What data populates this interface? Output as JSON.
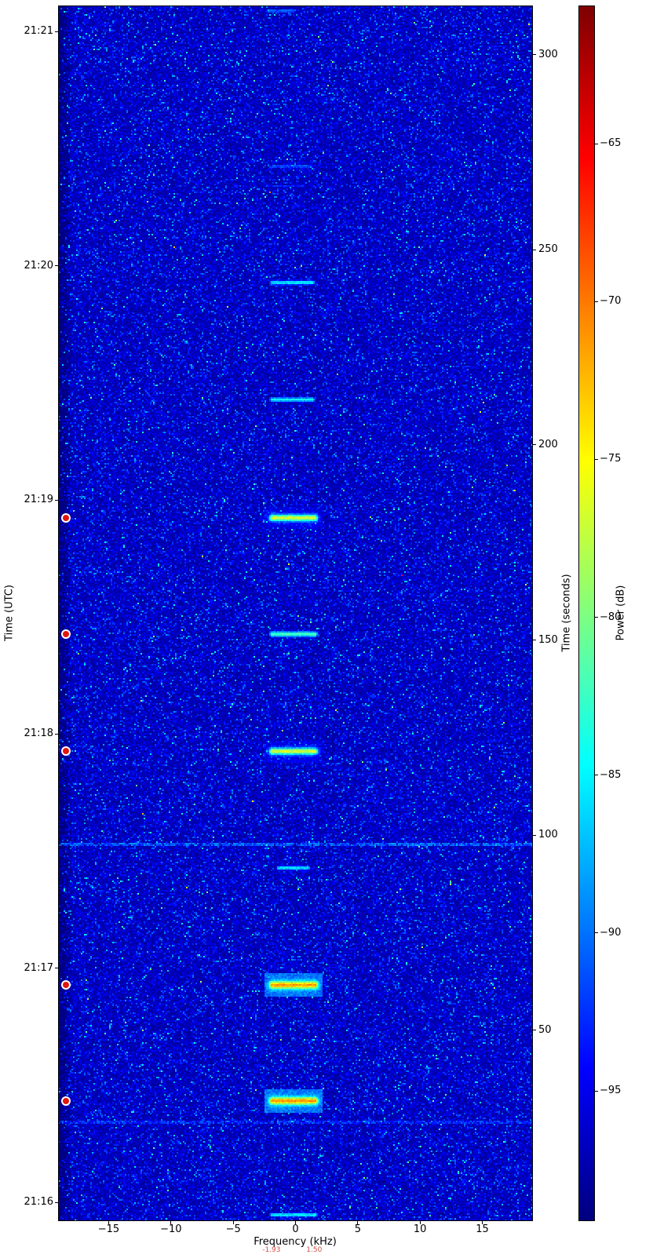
{
  "chart_data": {
    "type": "heatmap",
    "subtype": "radio_spectrogram_waterfall",
    "title": "",
    "xlabel": "Frequency (kHz)",
    "ylabel_left": "Time (UTC)",
    "ylabel_right": "Time (seconds)",
    "colorbar_label": "Power (dB)",
    "colormap": "jet",
    "xlim_khz": [
      -19.0,
      19.0
    ],
    "x_ticks": [
      {
        "value": -15,
        "label": "−15"
      },
      {
        "value": -10,
        "label": "−10"
      },
      {
        "value": -5,
        "label": "−5"
      },
      {
        "value": 0,
        "label": "0"
      },
      {
        "value": 5,
        "label": "5"
      },
      {
        "value": 10,
        "label": "10"
      },
      {
        "value": 15,
        "label": "15"
      }
    ],
    "ylim_seconds": [
      1.3,
      312.4
    ],
    "y_ticks_seconds": [
      {
        "value": 50,
        "label": "50"
      },
      {
        "value": 100,
        "label": "100"
      },
      {
        "value": 150,
        "label": "150"
      },
      {
        "value": 200,
        "label": "200"
      },
      {
        "value": 250,
        "label": "250"
      },
      {
        "value": 300,
        "label": "300"
      }
    ],
    "y_ticks_utc": [
      {
        "t_seconds": 5.9,
        "label": "21:16"
      },
      {
        "t_seconds": 65.9,
        "label": "21:17"
      },
      {
        "t_seconds": 125.9,
        "label": "21:18"
      },
      {
        "t_seconds": 185.9,
        "label": "21:19"
      },
      {
        "t_seconds": 245.9,
        "label": "21:20"
      },
      {
        "t_seconds": 305.9,
        "label": "21:21"
      }
    ],
    "power_db_range": [
      -99.1,
      -60.65
    ],
    "colorbar_ticks": [
      {
        "value": -65,
        "label": "−65"
      },
      {
        "value": -70,
        "label": "−70"
      },
      {
        "value": -75,
        "label": "−75"
      },
      {
        "value": -80,
        "label": "−80"
      },
      {
        "value": -85,
        "label": "−85"
      },
      {
        "value": -90,
        "label": "−90"
      },
      {
        "value": -95,
        "label": "−95"
      }
    ],
    "noise_floor_db": -96.5,
    "bursts": [
      {
        "t_seconds": 2.7,
        "f_lo_khz": -1.93,
        "f_hi_khz": 1.5,
        "peak_db": -84.5,
        "duration_s": 1.6
      },
      {
        "t_seconds": 31.9,
        "f_lo_khz": -1.93,
        "f_hi_khz": 1.5,
        "peak_db": -70.8,
        "duration_s": 2.4
      },
      {
        "t_seconds": 61.6,
        "f_lo_khz": -1.93,
        "f_hi_khz": 1.5,
        "peak_db": -71.0,
        "duration_s": 2.4
      },
      {
        "t_seconds": 91.6,
        "f_lo_khz": -1.4,
        "f_hi_khz": 0.9,
        "peak_db": -85.0,
        "duration_s": 1.7
      },
      {
        "t_seconds": 121.5,
        "f_lo_khz": -1.93,
        "f_hi_khz": 1.5,
        "peak_db": -76.3,
        "duration_s": 2.2
      },
      {
        "t_seconds": 151.5,
        "f_lo_khz": -1.93,
        "f_hi_khz": 1.5,
        "peak_db": -81.5,
        "duration_s": 2.0
      },
      {
        "t_seconds": 181.3,
        "f_lo_khz": -1.93,
        "f_hi_khz": 1.5,
        "peak_db": -76.5,
        "duration_s": 2.2
      },
      {
        "t_seconds": 211.6,
        "f_lo_khz": -1.93,
        "f_hi_khz": 1.3,
        "peak_db": -84.5,
        "duration_s": 1.9
      },
      {
        "t_seconds": 241.6,
        "f_lo_khz": -1.93,
        "f_hi_khz": 1.3,
        "peak_db": -85.0,
        "duration_s": 1.9
      },
      {
        "t_seconds": 266.3,
        "f_lo_khz": -1.8,
        "f_hi_khz": 0.6,
        "peak_db": -93.0,
        "duration_s": 1.5
      },
      {
        "t_seconds": 271.4,
        "f_lo_khz": -1.93,
        "f_hi_khz": 1.2,
        "peak_db": -90.5,
        "duration_s": 1.7
      },
      {
        "t_seconds": 311.2,
        "f_lo_khz": -2.3,
        "f_hi_khz": -0.3,
        "peak_db": -88.0,
        "duration_s": 1.1
      }
    ],
    "interference_lines": [
      {
        "t_seconds": 26.4,
        "peak_db": -90.5
      },
      {
        "t_seconds": 97.8,
        "peak_db": -88.5
      }
    ],
    "detections": {
      "marker": "circle",
      "fill_color": "#e1160f",
      "edge_color": "#ffffff",
      "t_seconds": [
        31.9,
        61.6,
        121.5,
        151.5,
        181.3
      ]
    },
    "annotations": [
      {
        "text": "-1.93",
        "f_khz": -1.93,
        "color": "#d24f48"
      },
      {
        "text": "1.50",
        "f_khz": 1.5,
        "color": "#d24f48"
      }
    ]
  }
}
